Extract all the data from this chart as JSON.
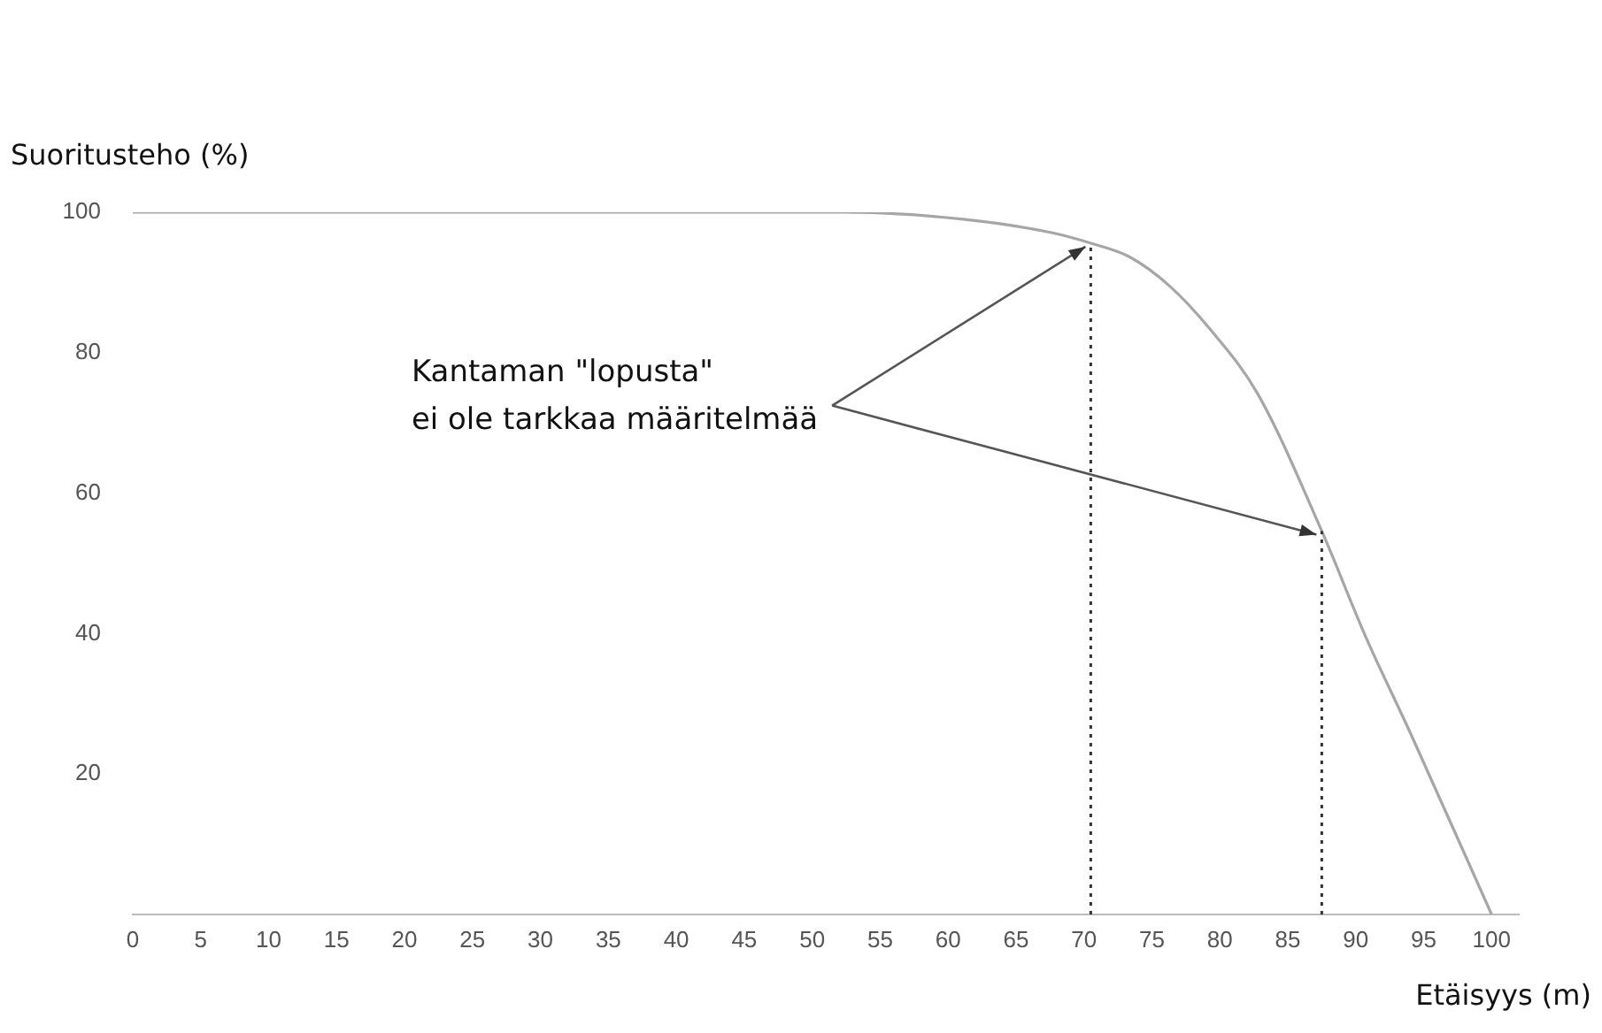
{
  "chart_data": {
    "type": "line",
    "xlabel": "Etäisyys (m)",
    "ylabel": "Suoritusteho (%)",
    "x": [
      0,
      52.4,
      61.1,
      67.6,
      70.5,
      73.3,
      76.3,
      79.3,
      82.8,
      87.5,
      90.7,
      94.1,
      100
    ],
    "series": [
      {
        "color": "#a6a6a6",
        "values": [
          100,
          100,
          99,
          97.1,
          95.6,
          93.7,
          89.5,
          83.3,
          74.1,
          54.6,
          39.7,
          25.5,
          0
        ]
      }
    ],
    "xlim": [
      0,
      102
    ],
    "ylim": [
      0,
      100
    ],
    "xticks": [
      0,
      5,
      10,
      15,
      20,
      25,
      30,
      35,
      40,
      45,
      50,
      55,
      60,
      65,
      70,
      75,
      80,
      85,
      90,
      95,
      100
    ],
    "yticks": [
      20,
      40,
      60,
      80,
      100
    ],
    "ref_lines": [
      {
        "axis": "x",
        "value": 70.5,
        "color": "#333333",
        "line_style": "dotted"
      },
      {
        "axis": "x",
        "value": 87.5,
        "color": "#333333",
        "line_style": "dotted"
      }
    ],
    "annotations": [
      {
        "text": "Kantaman \"lopusta\"\nei ole tarkkaa määritelmää",
        "x": 70.5,
        "y": 95.6
      }
    ],
    "grid": false,
    "legend": false,
    "marker": "none",
    "line_style": "solid"
  }
}
